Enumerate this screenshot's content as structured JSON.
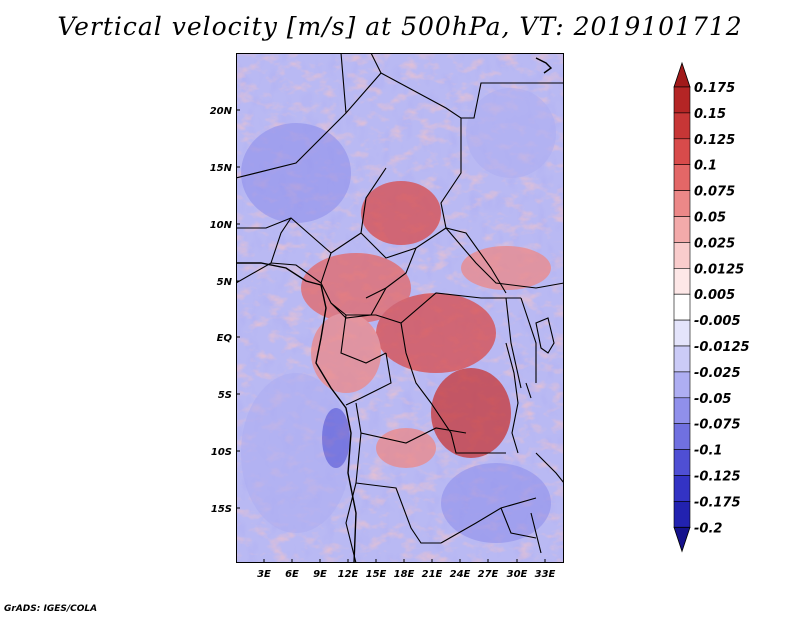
{
  "title": "Vertical velocity [m/s] at 500hPa, VT: 2019101712",
  "credit": "GrADS: IGES/COLA",
  "map": {
    "lat_ticks": [
      "20N",
      "15N",
      "10N",
      "5N",
      "EQ",
      "5S",
      "10S",
      "15S"
    ],
    "lon_ticks": [
      "3E",
      "6E",
      "9E",
      "12E",
      "15E",
      "18E",
      "21E",
      "24E",
      "27E",
      "30E",
      "33E"
    ],
    "lon_range": [
      0,
      35
    ],
    "lat_range": [
      -20,
      25
    ]
  },
  "colorbar": {
    "levels": [
      "0.175",
      "0.15",
      "0.125",
      "0.1",
      "0.075",
      "0.05",
      "0.025",
      "0.0125",
      "0.005",
      "-0.005",
      "-0.0125",
      "-0.025",
      "-0.05",
      "-0.075",
      "-0.1",
      "-0.125",
      "-0.175",
      "-0.2"
    ],
    "colors": [
      "#a11a1a",
      "#b42525",
      "#c73636",
      "#d84b4b",
      "#e36767",
      "#ec8888",
      "#f3aaaa",
      "#f9cccc",
      "#fde7e7",
      "#ffffff",
      "#e4e4fb",
      "#cbcbf7",
      "#aeaef2",
      "#9090eb",
      "#7070e0",
      "#4f4fd4",
      "#3333c4",
      "#2222b0",
      "#15128c"
    ]
  }
}
